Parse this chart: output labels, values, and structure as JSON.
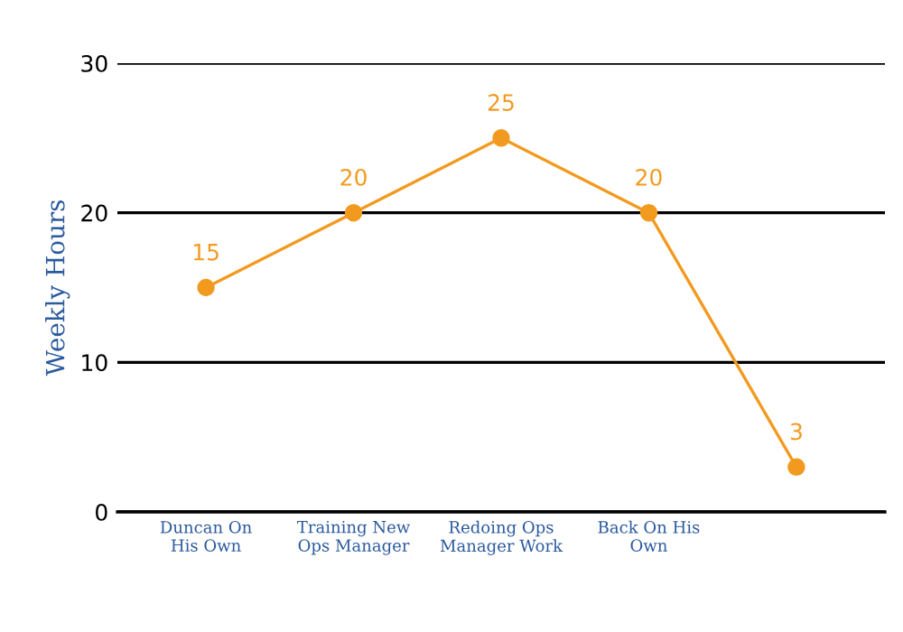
{
  "chart_data": {
    "type": "line",
    "ylabel": "Weekly Hours",
    "categories": [
      "Duncan On\nHis Own",
      "Training New\nOps Manager",
      "Redoing Ops\nManager Work",
      "Back On His\nOwn",
      null
    ],
    "series": [
      {
        "color": "#f29a1f",
        "values": [
          15,
          20,
          25,
          20,
          3
        ]
      }
    ],
    "ylim": [
      0,
      30
    ],
    "yticks": [
      0,
      10,
      20,
      30
    ],
    "grid": "y",
    "marker": "circle",
    "line_style": "solid",
    "data_labels": true
  }
}
